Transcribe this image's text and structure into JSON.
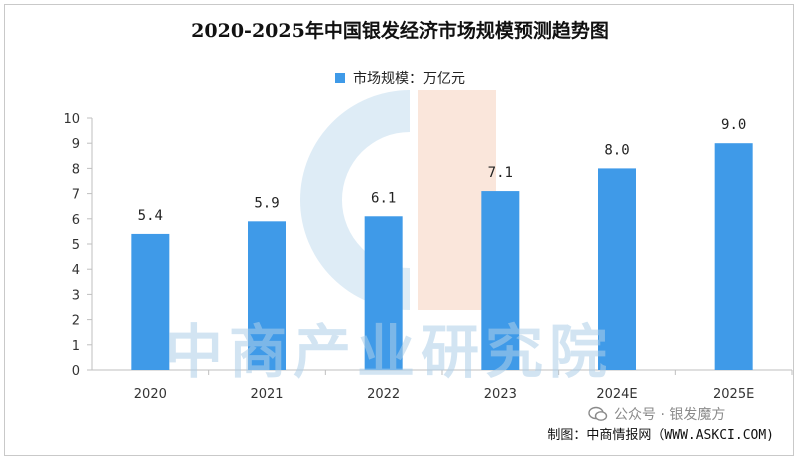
{
  "chart_data": {
    "type": "bar",
    "title": "2020-2025年中国银发经济市场规模预测趋势图",
    "categories": [
      "2020",
      "2021",
      "2022",
      "2023",
      "2024E",
      "2025E"
    ],
    "series": [
      {
        "name": "市场规模：万亿元",
        "values": [
          5.4,
          5.9,
          6.1,
          7.1,
          8.0,
          9.0
        ]
      }
    ],
    "data_labels": [
      "5.4",
      "5.9",
      "6.1",
      "7.1",
      "8.0",
      "9.0"
    ],
    "y_ticks": [
      0,
      1,
      2,
      3,
      4,
      5,
      6,
      7,
      8,
      9,
      10
    ],
    "ylim": [
      0,
      10
    ],
    "xlabel": "",
    "ylabel": "",
    "grid": false,
    "legend_position": "top-center",
    "bar_color": "#3f9ae8"
  },
  "watermark": "中商产业研究院",
  "credit": "公众号 · 银发魔方",
  "source": "制图：中商情报网（WWW.ASKCI.COM)"
}
